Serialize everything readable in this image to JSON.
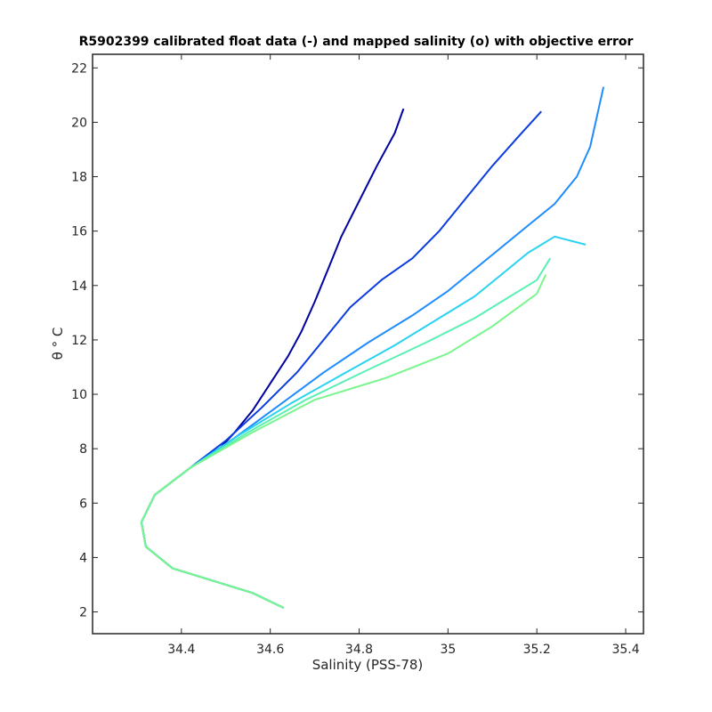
{
  "chart_data": {
    "type": "line",
    "title": "R5902399 calibrated float data (-) and mapped salinity (o) with objective error",
    "xlabel": "Salinity (PSS-78)",
    "ylabel": "θ ° C",
    "xlim": [
      34.2,
      35.44
    ],
    "ylim": [
      1.2,
      22.5
    ],
    "xticks": [
      "34.4",
      "34.6",
      "34.8",
      "35",
      "35.2",
      "35.4"
    ],
    "yticks": [
      "2",
      "4",
      "6",
      "8",
      "10",
      "12",
      "14",
      "16",
      "18",
      "20",
      "22"
    ],
    "grid": false,
    "legend": "none",
    "colormap": [
      "#0000a0",
      "#0a3ce0",
      "#1e8cff",
      "#28d2f0",
      "#5af0b4",
      "#78f58c"
    ],
    "series": [
      {
        "color": "#0000a0",
        "points": [
          [
            34.63,
            2.15
          ],
          [
            34.56,
            2.7
          ],
          [
            34.38,
            3.6
          ],
          [
            34.32,
            4.4
          ],
          [
            34.31,
            5.3
          ],
          [
            34.34,
            6.3
          ],
          [
            34.42,
            7.3
          ],
          [
            34.48,
            7.9
          ],
          [
            34.52,
            8.6
          ],
          [
            34.56,
            9.4
          ],
          [
            34.6,
            10.4
          ],
          [
            34.64,
            11.4
          ],
          [
            34.67,
            12.3
          ],
          [
            34.7,
            13.4
          ],
          [
            34.73,
            14.6
          ],
          [
            34.76,
            15.8
          ],
          [
            34.8,
            17.1
          ],
          [
            34.84,
            18.4
          ],
          [
            34.88,
            19.6
          ],
          [
            34.9,
            20.5
          ]
        ]
      },
      {
        "color": "#0a3ce0",
        "points": [
          [
            34.63,
            2.15
          ],
          [
            34.56,
            2.7
          ],
          [
            34.38,
            3.6
          ],
          [
            34.32,
            4.4
          ],
          [
            34.31,
            5.3
          ],
          [
            34.34,
            6.3
          ],
          [
            34.42,
            7.3
          ],
          [
            34.5,
            8.3
          ],
          [
            34.58,
            9.5
          ],
          [
            34.66,
            10.8
          ],
          [
            34.72,
            12.0
          ],
          [
            34.78,
            13.2
          ],
          [
            34.85,
            14.2
          ],
          [
            34.92,
            15.0
          ],
          [
            34.98,
            16.0
          ],
          [
            35.04,
            17.2
          ],
          [
            35.1,
            18.4
          ],
          [
            35.16,
            19.5
          ],
          [
            35.21,
            20.4
          ]
        ]
      },
      {
        "color": "#1e8cff",
        "points": [
          [
            34.63,
            2.15
          ],
          [
            34.56,
            2.7
          ],
          [
            34.38,
            3.6
          ],
          [
            34.32,
            4.4
          ],
          [
            34.31,
            5.3
          ],
          [
            34.34,
            6.3
          ],
          [
            34.42,
            7.3
          ],
          [
            34.52,
            8.4
          ],
          [
            34.62,
            9.6
          ],
          [
            34.72,
            10.8
          ],
          [
            34.82,
            11.9
          ],
          [
            34.92,
            12.9
          ],
          [
            35.0,
            13.8
          ],
          [
            35.06,
            14.6
          ],
          [
            35.12,
            15.4
          ],
          [
            35.18,
            16.2
          ],
          [
            35.24,
            17.0
          ],
          [
            35.29,
            18.0
          ],
          [
            35.32,
            19.1
          ],
          [
            35.35,
            21.3
          ]
        ]
      },
      {
        "color": "#28d2f0",
        "points": [
          [
            34.63,
            2.15
          ],
          [
            34.56,
            2.7
          ],
          [
            34.38,
            3.6
          ],
          [
            34.32,
            4.4
          ],
          [
            34.31,
            5.3
          ],
          [
            34.34,
            6.3
          ],
          [
            34.42,
            7.3
          ],
          [
            34.53,
            8.5
          ],
          [
            34.65,
            9.7
          ],
          [
            34.77,
            10.8
          ],
          [
            34.88,
            11.8
          ],
          [
            34.98,
            12.8
          ],
          [
            35.06,
            13.6
          ],
          [
            35.12,
            14.4
          ],
          [
            35.18,
            15.2
          ],
          [
            35.24,
            15.8
          ],
          [
            35.31,
            15.5
          ]
        ]
      },
      {
        "color": "#5af0b4",
        "points": [
          [
            34.63,
            2.15
          ],
          [
            34.56,
            2.7
          ],
          [
            34.38,
            3.6
          ],
          [
            34.32,
            4.4
          ],
          [
            34.31,
            5.3
          ],
          [
            34.34,
            6.3
          ],
          [
            34.42,
            7.3
          ],
          [
            34.55,
            8.6
          ],
          [
            34.68,
            9.8
          ],
          [
            34.82,
            10.9
          ],
          [
            34.95,
            11.9
          ],
          [
            35.06,
            12.8
          ],
          [
            35.14,
            13.6
          ],
          [
            35.2,
            14.2
          ],
          [
            35.23,
            15.0
          ]
        ]
      },
      {
        "color": "#78f58c",
        "points": [
          [
            34.63,
            2.15
          ],
          [
            34.56,
            2.7
          ],
          [
            34.38,
            3.6
          ],
          [
            34.32,
            4.4
          ],
          [
            34.31,
            5.3
          ],
          [
            34.34,
            6.3
          ],
          [
            34.42,
            7.3
          ],
          [
            34.56,
            8.6
          ],
          [
            34.7,
            9.8
          ],
          [
            34.86,
            10.6
          ],
          [
            35.0,
            11.5
          ],
          [
            35.1,
            12.5
          ],
          [
            35.2,
            13.7
          ],
          [
            35.22,
            14.4
          ]
        ]
      }
    ]
  }
}
